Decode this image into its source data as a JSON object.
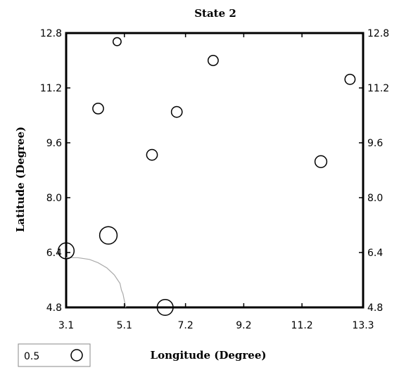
{
  "chart_data": {
    "type": "scatter",
    "title": "State 2",
    "xlabel": "Longitude (Degree)",
    "ylabel": "Latitude (Degree)",
    "xlim": [
      3.1,
      13.3
    ],
    "ylim": [
      4.8,
      12.8
    ],
    "xticks": [
      "3.1",
      "5.1",
      "7.2",
      "9.2",
      "11.2",
      "13.3"
    ],
    "yticks": [
      "4.8",
      "6.4",
      "8.0",
      "9.6",
      "11.2",
      "12.8"
    ],
    "grid": false,
    "legend": {
      "placement": "bottom-left",
      "label": "0.5",
      "value": 0.5
    },
    "points": [
      {
        "x": 4.85,
        "y": 12.55,
        "value": 0.25
      },
      {
        "x": 8.15,
        "y": 12.0,
        "value": 0.4
      },
      {
        "x": 12.85,
        "y": 11.45,
        "value": 0.4
      },
      {
        "x": 4.2,
        "y": 10.6,
        "value": 0.45
      },
      {
        "x": 6.9,
        "y": 10.5,
        "value": 0.45
      },
      {
        "x": 6.05,
        "y": 9.25,
        "value": 0.45
      },
      {
        "x": 11.85,
        "y": 9.05,
        "value": 0.55
      },
      {
        "x": 4.55,
        "y": 6.9,
        "value": 1.2
      },
      {
        "x": 3.1,
        "y": 6.45,
        "value": 1.0
      },
      {
        "x": 6.5,
        "y": 4.8,
        "value": 1.0
      }
    ],
    "boundary": [
      [
        3.1,
        6.25
      ],
      [
        3.5,
        6.25
      ],
      [
        3.9,
        6.2
      ],
      [
        4.2,
        6.1
      ],
      [
        4.5,
        5.95
      ],
      [
        4.75,
        5.75
      ],
      [
        4.95,
        5.5
      ],
      [
        5.0,
        5.3
      ],
      [
        5.05,
        5.2
      ],
      [
        5.1,
        5.0
      ],
      [
        5.15,
        4.8
      ]
    ]
  }
}
